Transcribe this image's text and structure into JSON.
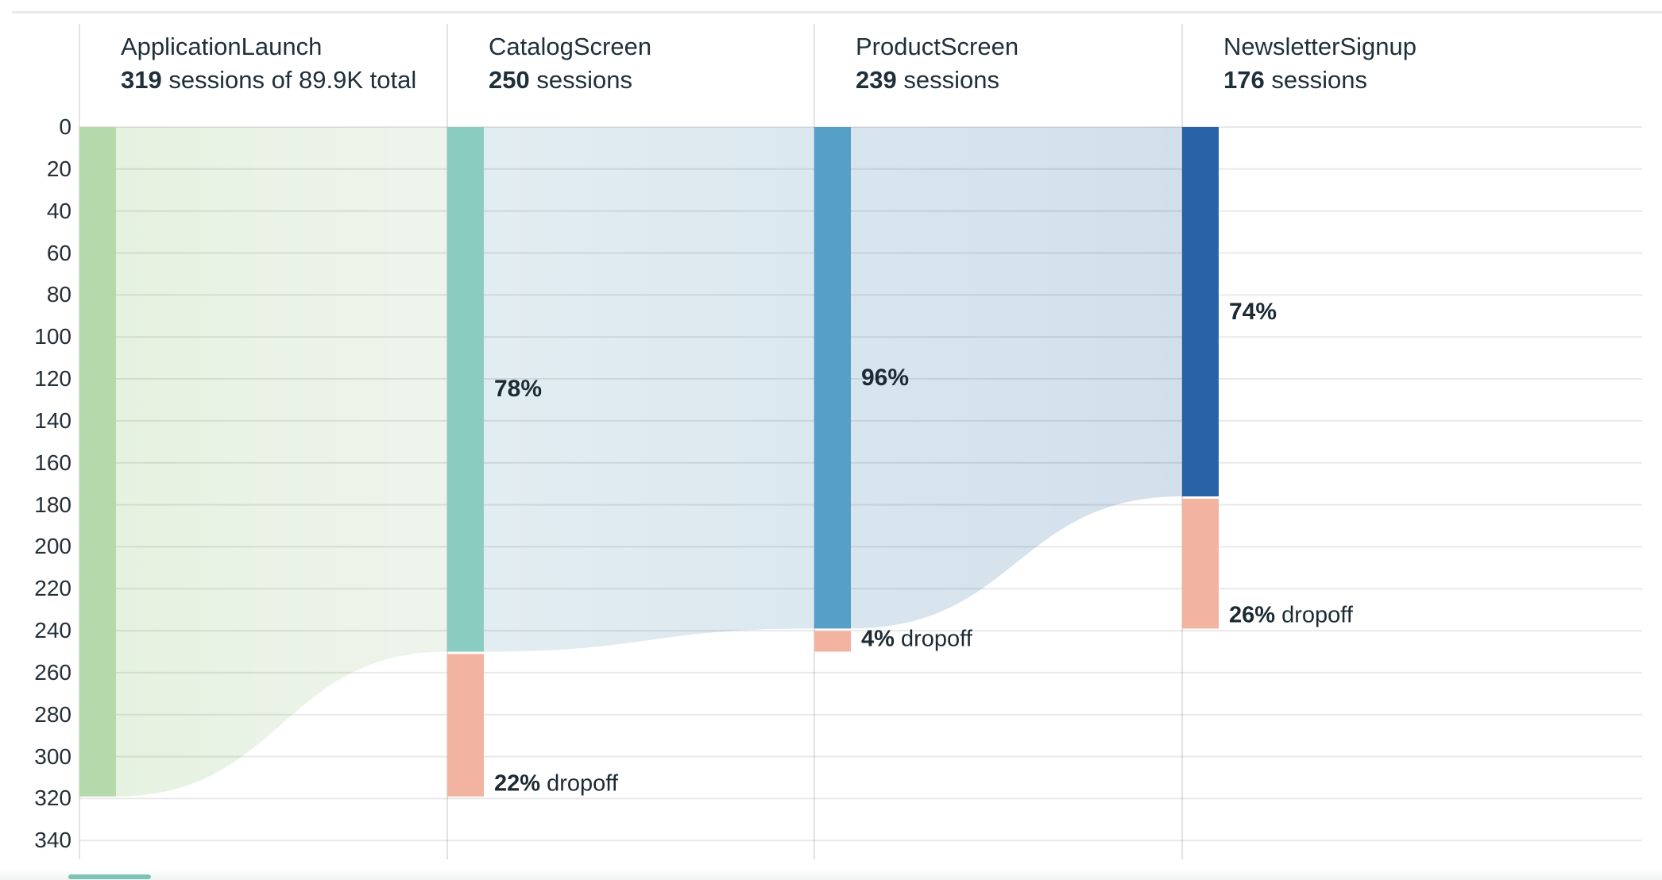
{
  "page": {
    "top_border_color": "#e9e9e9",
    "background": "#ffffff",
    "scrollbar_thumb_color": "#7cc3b6"
  },
  "chart_data": {
    "type": "funnel",
    "unit": "sessions",
    "total": "89.9K",
    "dropoff_word": "dropoff",
    "y_axis": {
      "min": 0,
      "max": 340,
      "step": 20
    },
    "ticks": [
      0,
      20,
      40,
      60,
      80,
      100,
      120,
      140,
      160,
      180,
      200,
      220,
      240,
      260,
      280,
      300,
      320,
      340
    ],
    "grid": true,
    "colors": {
      "grid_line": "rgba(0,0,0,0.085)",
      "column_line": "rgba(0,0,0,0.11)",
      "text": "#1c2a33",
      "dropoff_bar": "#f2b3a0"
    },
    "steps": [
      {
        "name": "ApplicationLaunch",
        "sessions": 319,
        "subtitle_value": "319",
        "subtitle_text": " sessions of 89.9K total",
        "bar_color": "#b5d9ab",
        "conversion": null,
        "dropoff": null,
        "flow_gradient": null
      },
      {
        "name": "CatalogScreen",
        "sessions": 250,
        "subtitle_value": "250",
        "subtitle_text": " sessions",
        "bar_color": "#8accbf",
        "conversion": "78%",
        "dropoff": "22%",
        "flow_gradient": [
          "#e6f2e0",
          "#eef4ed"
        ]
      },
      {
        "name": "ProductScreen",
        "sessions": 239,
        "subtitle_value": "239",
        "subtitle_text": " sessions",
        "bar_color": "#56a0c8",
        "conversion": "96%",
        "dropoff": "4%",
        "flow_gradient": [
          "#e2edf1",
          "#dce8f0"
        ]
      },
      {
        "name": "NewsletterSignup",
        "sessions": 176,
        "subtitle_value": "176",
        "subtitle_text": " sessions",
        "bar_color": "#2a62a8",
        "conversion": "74%",
        "dropoff": "26%",
        "flow_gradient": [
          "#d9e5ee",
          "#d3dfea"
        ]
      }
    ]
  }
}
